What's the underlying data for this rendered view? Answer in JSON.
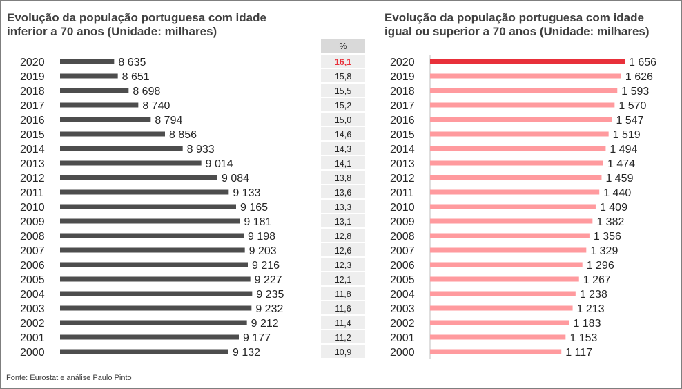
{
  "source": "Fonte: Eurostat e análise Paulo Pinto",
  "chart_data": [
    {
      "type": "bar",
      "orientation": "horizontal",
      "title": "Evolução da população portuguesa com idade inferior a 70 anos (Unidade: milhares)",
      "title_line1": "Evolução da população portuguesa com idade",
      "title_line2": "inferior a 70 anos (Unidade: milhares)",
      "categories": [
        "2020",
        "2019",
        "2018",
        "2017",
        "2016",
        "2015",
        "2014",
        "2013",
        "2012",
        "2011",
        "2010",
        "2009",
        "2008",
        "2007",
        "2006",
        "2005",
        "2004",
        "2003",
        "2002",
        "2001",
        "2000"
      ],
      "values": [
        8635,
        8651,
        8698,
        8740,
        8794,
        8856,
        8933,
        9014,
        9084,
        9133,
        9165,
        9181,
        9198,
        9203,
        9216,
        9227,
        9235,
        9232,
        9212,
        9177,
        9132
      ],
      "value_labels": [
        "8 635",
        "8 651",
        "8 698",
        "8 740",
        "8 794",
        "8 856",
        "8 933",
        "9 014",
        "9 084",
        "9 133",
        "9 165",
        "9 181",
        "9 198",
        "9 203",
        "9 216",
        "9 227",
        "9 235",
        "9 232",
        "9 212",
        "9 177",
        "9 132"
      ],
      "xlim": [
        8400,
        9300
      ],
      "bar_color": "#4d4d4d",
      "grid": false,
      "legend": "none"
    },
    {
      "type": "table",
      "header": "%",
      "values": [
        "16,1",
        "15,8",
        "15,5",
        "15,2",
        "15,0",
        "14,6",
        "14,3",
        "14,1",
        "13,8",
        "13,6",
        "13,3",
        "13,1",
        "12,8",
        "12,6",
        "12,3",
        "12,1",
        "11,8",
        "11,6",
        "11,4",
        "11,2",
        "10,9"
      ],
      "highlight_first": true,
      "highlight_color": "#e8303a"
    },
    {
      "type": "bar",
      "orientation": "horizontal",
      "title": "Evolução da população portuguesa com idade igual ou superior a 70 anos (Unidade: milhares)",
      "title_line1": "Evolução da população portuguesa com idade",
      "title_line2": "igual ou superior a 70 anos (Unidade: milhares)",
      "categories": [
        "2020",
        "2019",
        "2018",
        "2017",
        "2016",
        "2015",
        "2014",
        "2013",
        "2012",
        "2011",
        "2010",
        "2009",
        "2008",
        "2007",
        "2006",
        "2005",
        "2004",
        "2003",
        "2002",
        "2001",
        "2000"
      ],
      "values": [
        1656,
        1626,
        1593,
        1570,
        1547,
        1519,
        1494,
        1474,
        1459,
        1440,
        1409,
        1382,
        1356,
        1329,
        1296,
        1267,
        1238,
        1213,
        1183,
        1153,
        1117
      ],
      "value_labels": [
        "1 656",
        "1 626",
        "1 593",
        "1 570",
        "1 547",
        "1 519",
        "1 494",
        "1 474",
        "1 459",
        "1 440",
        "1 409",
        "1 382",
        "1 356",
        "1 329",
        "1 296",
        "1 267",
        "1 238",
        "1 213",
        "1 183",
        "1 153",
        "1 117"
      ],
      "xlim": [
        0,
        1656
      ],
      "bar_color": "#ff9a9e",
      "highlight_color": "#e8303a",
      "grid": false,
      "legend": "none"
    }
  ]
}
